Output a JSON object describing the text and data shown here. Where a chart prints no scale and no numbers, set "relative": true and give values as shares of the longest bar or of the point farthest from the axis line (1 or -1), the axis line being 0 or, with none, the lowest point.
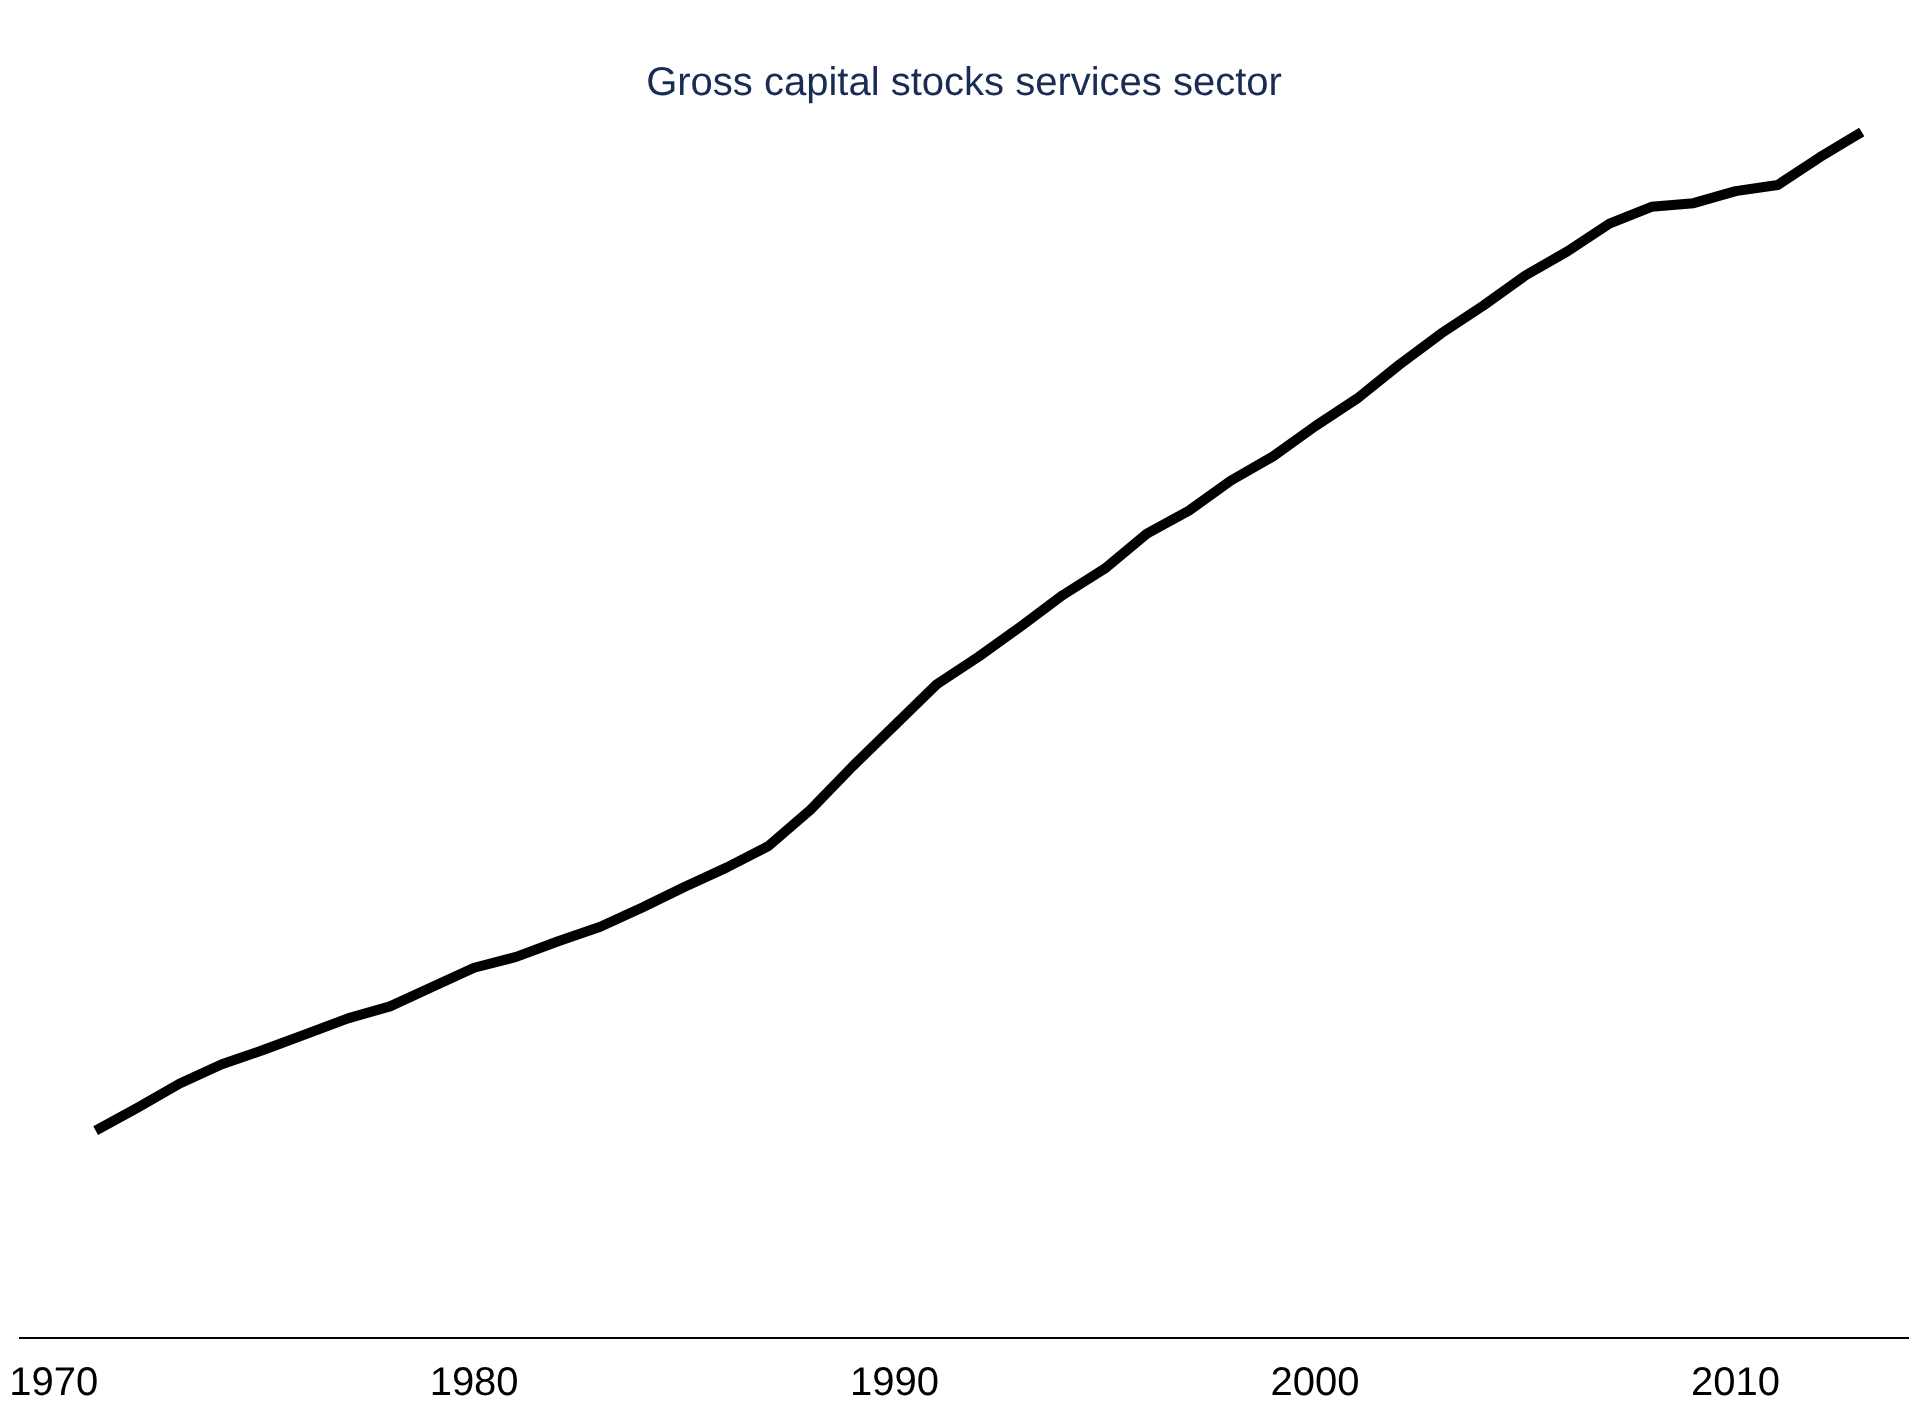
{
  "chart_data": {
    "type": "line",
    "title": "Gross capital stocks services sector",
    "relative": true,
    "x": [
      1971,
      1972,
      1973,
      1974,
      1975,
      1976,
      1977,
      1978,
      1979,
      1980,
      1981,
      1982,
      1983,
      1984,
      1985,
      1986,
      1987,
      1988,
      1989,
      1990,
      1991,
      1992,
      1993,
      1994,
      1995,
      1996,
      1997,
      1998,
      1999,
      2000,
      2001,
      2002,
      2003,
      2004,
      2005,
      2006,
      2007,
      2008,
      2009,
      2010,
      2011,
      2012,
      2013
    ],
    "series": [
      {
        "color": "#000000",
        "values": [
          0.172,
          0.191,
          0.211,
          0.227,
          0.239,
          0.252,
          0.265,
          0.275,
          0.291,
          0.307,
          0.316,
          0.329,
          0.341,
          0.357,
          0.374,
          0.39,
          0.408,
          0.438,
          0.474,
          0.508,
          0.542,
          0.565,
          0.59,
          0.616,
          0.638,
          0.667,
          0.686,
          0.711,
          0.731,
          0.756,
          0.779,
          0.807,
          0.833,
          0.856,
          0.881,
          0.901,
          0.924,
          0.938,
          0.941,
          0.951,
          0.956,
          0.979,
          1
        ]
      }
    ],
    "xlim": [
      1969.2,
      2014.1
    ],
    "xticks": [
      1970,
      1980,
      1990,
      2000,
      2010
    ],
    "legend": false,
    "marker": "none",
    "line_style": "solid"
  }
}
